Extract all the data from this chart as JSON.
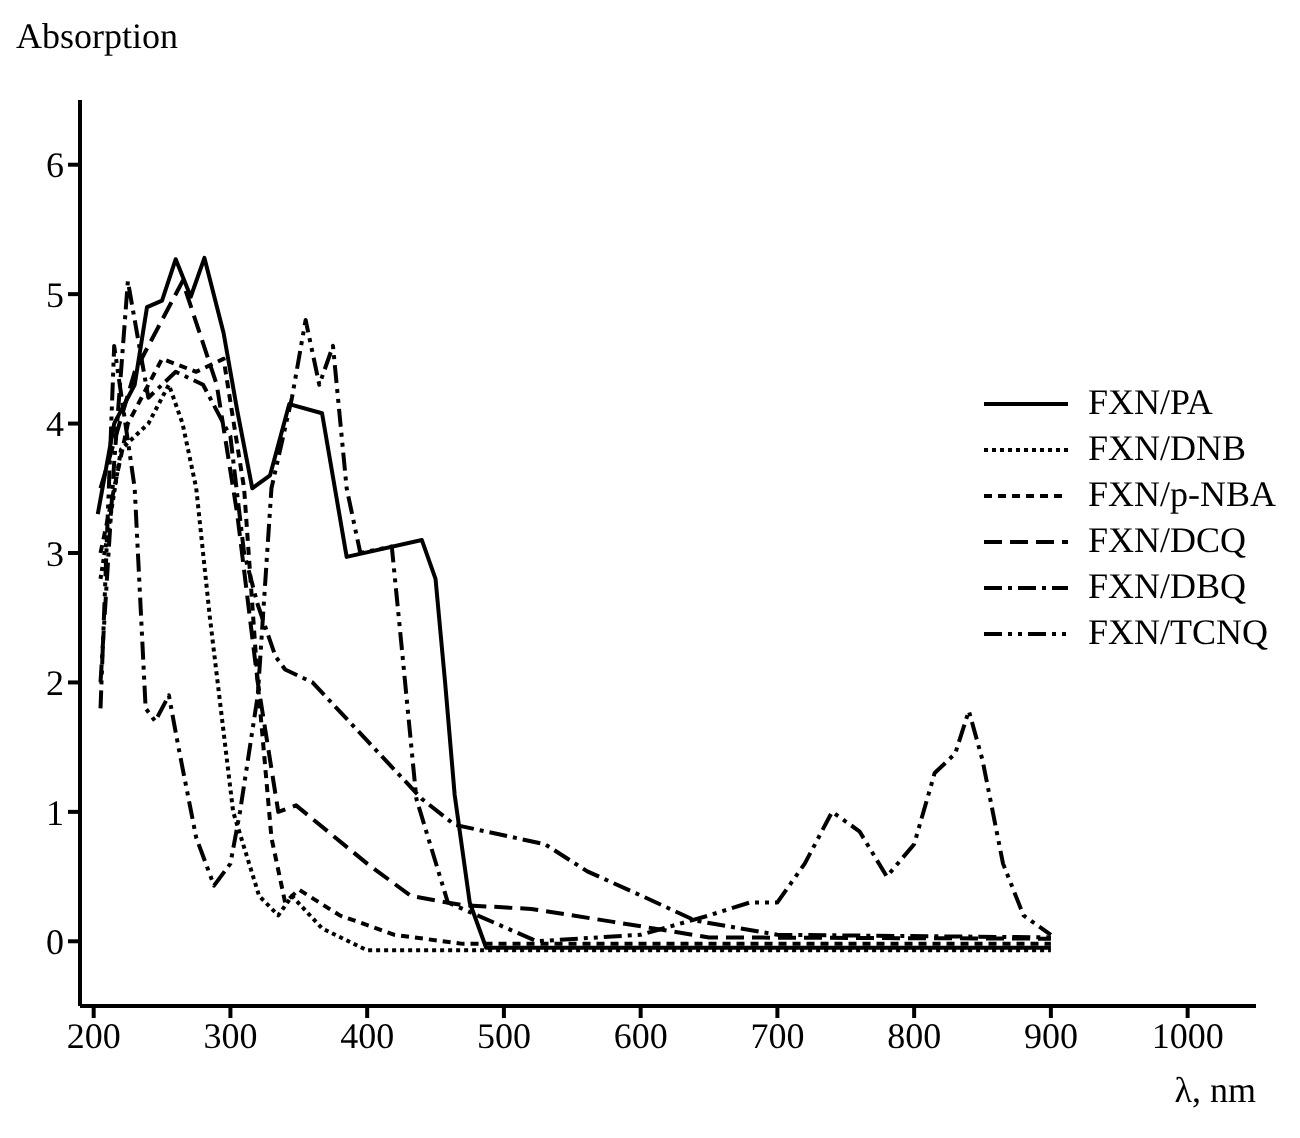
{
  "chart_data": {
    "type": "line",
    "xlabel": "λ, nm",
    "ylabel": "Absorption",
    "xlim": [
      190,
      1050
    ],
    "xticks": [
      200,
      300,
      400,
      500,
      600,
      700,
      800,
      900,
      1000
    ],
    "ylim": [
      -0.5,
      6.5
    ],
    "yticks": [
      0,
      1,
      2,
      3,
      4,
      5,
      6
    ],
    "legend": "right",
    "marker": "none",
    "series": [
      {
        "name": "FXN/PA",
        "color": "#000000",
        "line_style": "solid",
        "x": [
          203,
          215,
          230,
          239,
          250,
          260,
          271,
          281,
          295,
          305,
          316,
          329,
          343,
          367,
          385,
          440,
          450,
          457,
          464,
          475,
          487,
          600,
          900
        ],
        "values": [
          3.3,
          4.0,
          4.3,
          4.9,
          4.95,
          5.27,
          4.98,
          5.28,
          4.7,
          4.1,
          3.5,
          3.6,
          4.15,
          4.08,
          2.97,
          3.1,
          2.8,
          2.0,
          1.13,
          0.3,
          -0.05,
          -0.05,
          -0.05
        ]
      },
      {
        "name": "FXN/DNB",
        "color": "#000000",
        "line_style": "dotted",
        "x": [
          205,
          220,
          240,
          255,
          265,
          275,
          285,
          302,
          321,
          335,
          345,
          367,
          400,
          900
        ],
        "values": [
          2.8,
          3.8,
          4.0,
          4.3,
          4.0,
          3.5,
          2.5,
          1.0,
          0.35,
          0.2,
          0.35,
          0.1,
          -0.07,
          -0.07
        ]
      },
      {
        "name": "FXN/p-NBA",
        "color": "#000000",
        "line_style": "dashed",
        "x": [
          205,
          225,
          250,
          275,
          295,
          310,
          320,
          330,
          340,
          350,
          380,
          420,
          470,
          900
        ],
        "values": [
          3.0,
          4.0,
          4.5,
          4.4,
          4.5,
          3.5,
          2.0,
          0.8,
          0.3,
          0.4,
          0.2,
          0.05,
          -0.02,
          -0.02
        ]
      },
      {
        "name": "FXN/DCQ",
        "color": "#000000",
        "line_style": "longdash",
        "x": [
          205,
          230,
          265,
          290,
          305,
          320,
          335,
          348,
          400,
          432,
          469,
          520,
          580,
          650,
          900
        ],
        "values": [
          3.5,
          4.4,
          5.1,
          4.3,
          3.3,
          2.0,
          1.0,
          1.05,
          0.6,
          0.35,
          0.28,
          0.25,
          0.15,
          0.03,
          0.02
        ]
      },
      {
        "name": "FXN/DBQ",
        "color": "#000000",
        "line_style": "dashdot",
        "x": [
          205,
          215,
          225,
          240,
          260,
          280,
          300,
          310,
          320,
          333,
          340,
          360,
          400,
          440,
          464,
          530,
          561,
          603,
          640,
          700,
          900
        ],
        "values": [
          2.0,
          3.7,
          5.1,
          4.2,
          4.4,
          4.3,
          3.9,
          3.0,
          2.6,
          2.2,
          2.1,
          2.0,
          1.55,
          1.1,
          0.9,
          0.75,
          0.54,
          0.34,
          0.16,
          0.05,
          0.03
        ]
      },
      {
        "name": "FXN/TCNQ",
        "color": "#000000",
        "line_style": "dashdotdot",
        "x": [
          205,
          215,
          230,
          238,
          245,
          255,
          262,
          275,
          288,
          300,
          307,
          320,
          330,
          345,
          355,
          365,
          375,
          385,
          395,
          418,
          425,
          436,
          459,
          524,
          600,
          650,
          680,
          700,
          720,
          740,
          760,
          780,
          800,
          815,
          830,
          840,
          850,
          865,
          880,
          900
        ],
        "values": [
          1.8,
          4.6,
          3.5,
          1.8,
          1.7,
          1.9,
          1.5,
          0.8,
          0.43,
          0.6,
          1.0,
          1.9,
          3.5,
          4.2,
          4.8,
          4.3,
          4.6,
          3.5,
          3.0,
          3.05,
          2.3,
          1.1,
          0.3,
          0.0,
          0.05,
          0.2,
          0.3,
          0.3,
          0.6,
          1.0,
          0.85,
          0.5,
          0.75,
          1.3,
          1.45,
          1.78,
          1.4,
          0.6,
          0.2,
          0.05
        ]
      }
    ]
  }
}
